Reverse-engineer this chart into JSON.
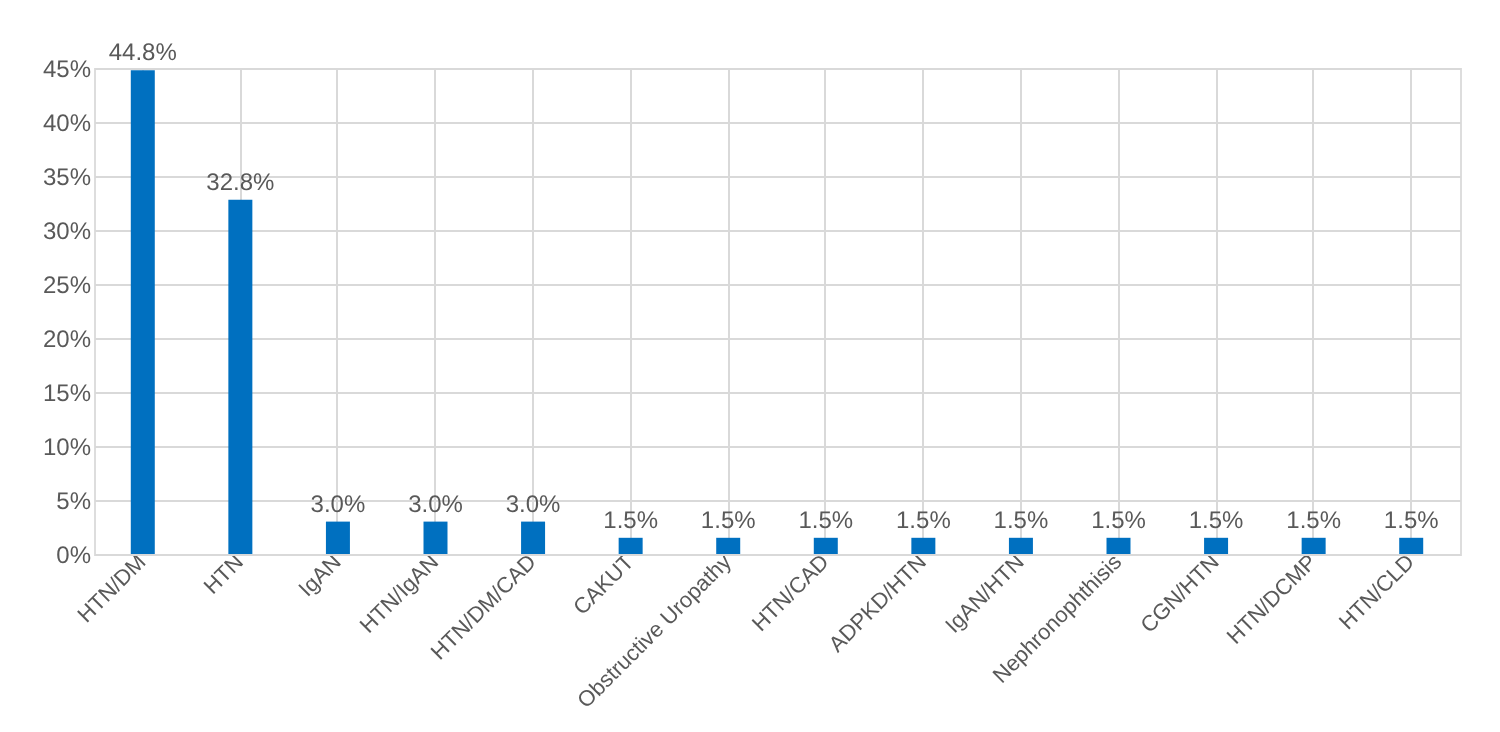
{
  "chart_data": {
    "type": "bar",
    "categories": [
      "HTN/DM",
      "HTN",
      "IgAN",
      "HTN/IgAN",
      "HTN/DM/CAD",
      "CAKUT",
      "Obstructive Uropathy",
      "HTN/CAD",
      "ADPKD/HTN",
      "IgAN/HTN",
      "Nephronophthisis",
      "CGN/HTN",
      "HTN/DCMP",
      "HTN/CLD"
    ],
    "values": [
      44.8,
      32.8,
      3.0,
      3.0,
      3.0,
      1.5,
      1.5,
      1.5,
      1.5,
      1.5,
      1.5,
      1.5,
      1.5,
      1.5
    ],
    "value_labels": [
      "44.8%",
      "32.8%",
      "3.0%",
      "3.0%",
      "3.0%",
      "1.5%",
      "1.5%",
      "1.5%",
      "1.5%",
      "1.5%",
      "1.5%",
      "1.5%",
      "1.5%",
      "1.5%"
    ],
    "color": "#0070c0",
    "ylim": [
      0,
      45
    ],
    "yticks": [
      {
        "value": 0,
        "label": "0%"
      },
      {
        "value": 5,
        "label": "5%"
      },
      {
        "value": 10,
        "label": "10%"
      },
      {
        "value": 15,
        "label": "15%"
      },
      {
        "value": 20,
        "label": "20%"
      },
      {
        "value": 25,
        "label": "25%"
      },
      {
        "value": 30,
        "label": "30%"
      },
      {
        "value": 35,
        "label": "35%"
      },
      {
        "value": 40,
        "label": "40%"
      },
      {
        "value": 45,
        "label": "45%"
      }
    ],
    "grid": true
  }
}
